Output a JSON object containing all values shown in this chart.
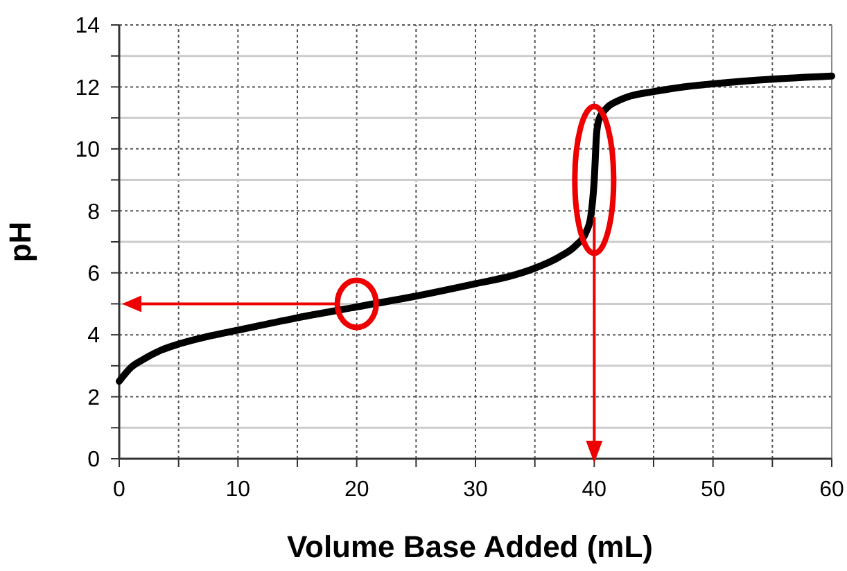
{
  "chart_data": {
    "type": "line",
    "xlabel": "Volume Base Added (mL)",
    "ylabel": "pH",
    "x": [
      0,
      1,
      2,
      3.5,
      5,
      7.5,
      10,
      15,
      20,
      25,
      30,
      33,
      35,
      37,
      38.5,
      39.3,
      39.7,
      40,
      40.2,
      40.4,
      41,
      42,
      43,
      45,
      47.5,
      50,
      55,
      60
    ],
    "series": [
      {
        "color": "#000000",
        "values": [
          2.5,
          2.95,
          3.2,
          3.5,
          3.7,
          3.95,
          4.15,
          4.55,
          4.9,
          5.25,
          5.65,
          5.9,
          6.15,
          6.5,
          6.9,
          7.3,
          7.8,
          9,
          10.5,
          10.95,
          11.3,
          11.55,
          11.7,
          11.85,
          12,
          12.1,
          12.25,
          12.35
        ]
      }
    ],
    "xlim": [
      0,
      60
    ],
    "ylim": [
      0,
      14
    ],
    "xticks": [
      0,
      {
        "value": 5,
        "label": null
      },
      10,
      {
        "value": 15,
        "label": null
      },
      20,
      {
        "value": 25,
        "label": null
      },
      30,
      {
        "value": 35,
        "label": null
      },
      40,
      {
        "value": 45,
        "label": null
      },
      50,
      {
        "value": 55,
        "label": null
      },
      60
    ],
    "yticks": [
      0,
      {
        "value": 1,
        "label": null
      },
      2,
      {
        "value": 3,
        "label": null
      },
      4,
      {
        "value": 5,
        "label": null
      },
      6,
      {
        "value": 7,
        "label": null
      },
      8,
      {
        "value": 9,
        "label": null
      },
      10,
      {
        "value": 11,
        "label": null
      },
      12,
      {
        "value": 13,
        "label": null
      },
      14
    ],
    "grid": true,
    "marker": "none",
    "line_style": "solid"
  }
}
